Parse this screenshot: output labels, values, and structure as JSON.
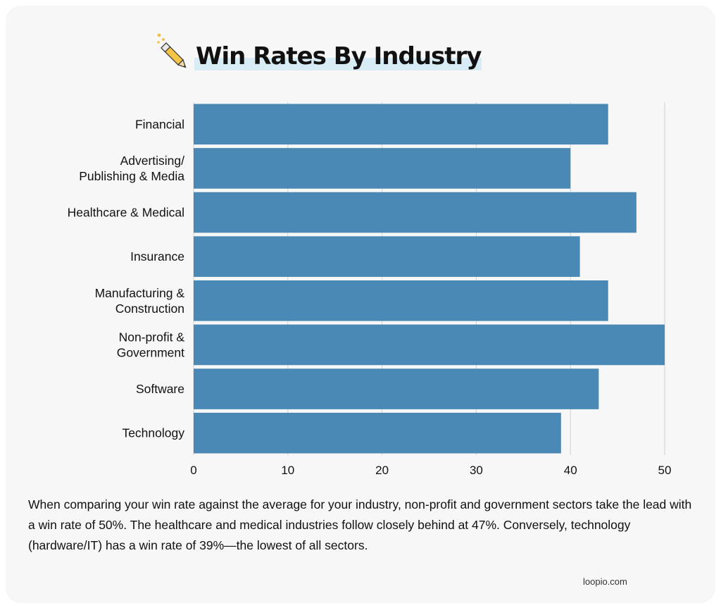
{
  "chart_data": {
    "type": "bar",
    "orientation": "horizontal",
    "title": "Win Rates By Industry",
    "categories": [
      "Financial",
      "Advertising/\nPublishing & Media",
      "Healthcare & Medical",
      "Insurance",
      "Manufacturing &\nConstruction",
      "Non-profit &\nGovernment",
      "Software",
      "Technology"
    ],
    "values": [
      44,
      40,
      47,
      41,
      44,
      50,
      43,
      39
    ],
    "xlim": [
      0,
      50
    ],
    "xticks": [
      0,
      10,
      20,
      30,
      40,
      50
    ],
    "grid": true,
    "legend": "none",
    "bar_color": "#4a89b5",
    "grid_color": "#d2d2d2"
  },
  "caption": "When comparing your win rate against the average for your industry, non-profit and government sectors take the lead with a win rate of 50%. The healthcare and medical industries follow closely behind at 47%. Conversely, technology (hardware/IT) has a win rate of 39%—the lowest of all sectors.",
  "brand": "loopio.com",
  "icons": {
    "title_icon": "pencil-icon"
  }
}
